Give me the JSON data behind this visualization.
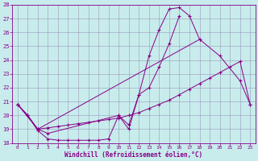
{
  "xlabel": "Windchill (Refroidissement éolien,°C)",
  "bg_color": "#c8ecec",
  "line_color": "#880088",
  "xlim": [
    -0.5,
    23.5
  ],
  "ylim": [
    18,
    28
  ],
  "yticks": [
    18,
    19,
    20,
    21,
    22,
    23,
    24,
    25,
    26,
    27,
    28
  ],
  "xticks": [
    0,
    1,
    2,
    3,
    4,
    5,
    6,
    7,
    8,
    9,
    10,
    11,
    12,
    13,
    14,
    15,
    16,
    17,
    18,
    19,
    20,
    21,
    22,
    23
  ],
  "series1_x": [
    0,
    1,
    2,
    3,
    4,
    5,
    6,
    7,
    8,
    9,
    10,
    11,
    12,
    13,
    14,
    15,
    16,
    17,
    18
  ],
  "series1_y": [
    20.8,
    20.0,
    18.9,
    18.3,
    18.2,
    18.2,
    18.2,
    18.2,
    18.2,
    18.3,
    20.0,
    19.0,
    21.5,
    24.3,
    26.2,
    27.7,
    27.8,
    27.2,
    25.5
  ],
  "series2_x": [
    0,
    1,
    2,
    3,
    10,
    11,
    12,
    13,
    14,
    15,
    16
  ],
  "series2_y": [
    20.8,
    20.0,
    19.0,
    18.7,
    20.0,
    19.3,
    21.5,
    22.0,
    23.5,
    25.2,
    27.2
  ],
  "series3_x": [
    0,
    2,
    18,
    20,
    22,
    23
  ],
  "series3_y": [
    20.8,
    19.0,
    25.5,
    24.3,
    22.5,
    20.8
  ],
  "series4_x": [
    0,
    1,
    2,
    3,
    4,
    5,
    6,
    7,
    8,
    9,
    10,
    11,
    12,
    13,
    14,
    15,
    16,
    17,
    18,
    19,
    20,
    21,
    22,
    23
  ],
  "series4_y": [
    20.8,
    20.0,
    19.0,
    19.1,
    19.2,
    19.3,
    19.4,
    19.5,
    19.6,
    19.7,
    19.8,
    20.0,
    20.2,
    20.5,
    20.8,
    21.1,
    21.5,
    21.9,
    22.3,
    22.7,
    23.1,
    23.5,
    23.9,
    20.8
  ]
}
